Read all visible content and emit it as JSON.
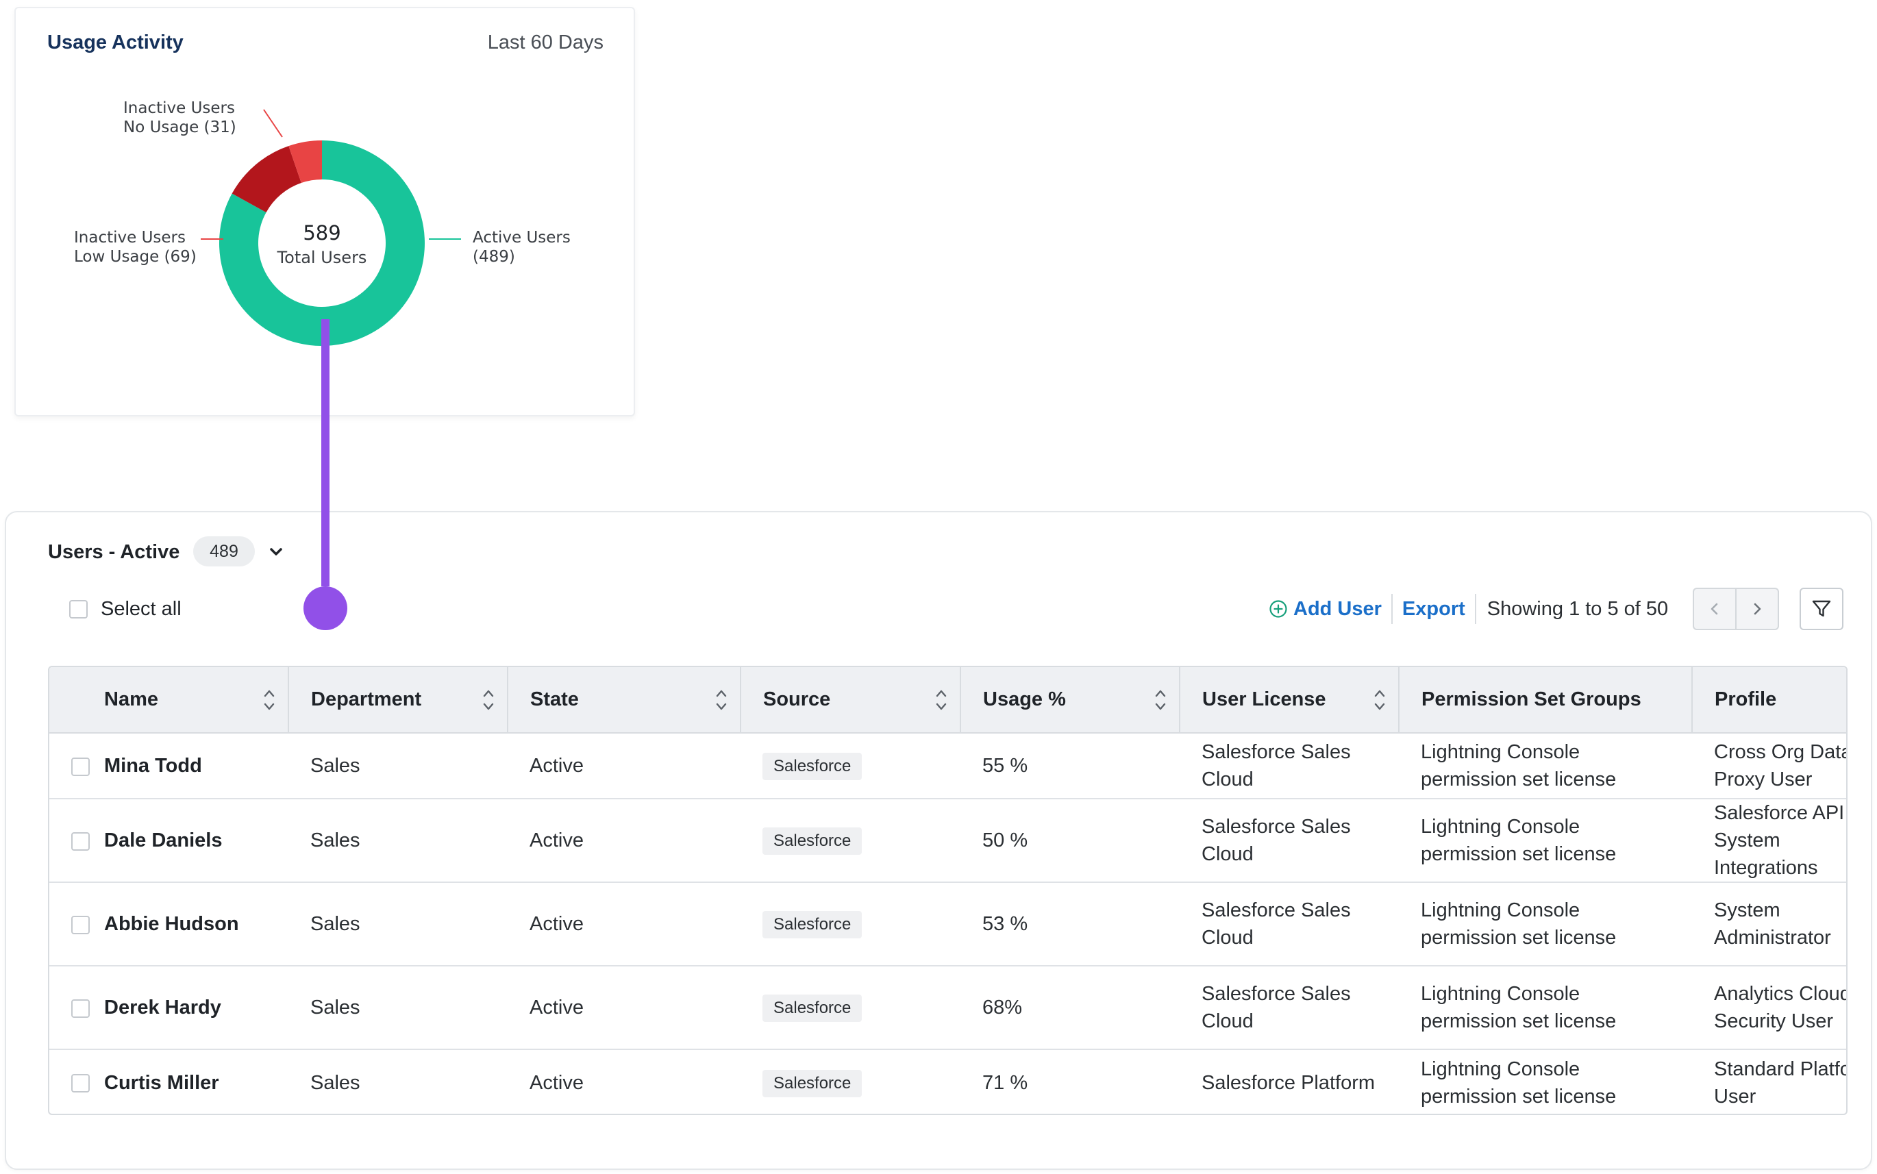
{
  "usage_card": {
    "title": "Usage Activity",
    "range": "Last 60 Days",
    "center_number": "589",
    "center_label": "Total Users",
    "labels": {
      "inactive_no_usage": [
        "Inactive Users",
        "No Usage (31)"
      ],
      "inactive_low_usage": [
        "Inactive Users",
        "Low Usage (69)"
      ],
      "active": [
        "Active Users",
        "(489)"
      ]
    },
    "colors": {
      "active": "#18c49a",
      "low_usage": "#b3161c",
      "no_usage": "#e84444",
      "connector": "#9150e8"
    }
  },
  "chart_data": {
    "type": "pie",
    "title": "Usage Activity",
    "subtitle": "Last 60 Days",
    "total": 589,
    "slices": [
      {
        "label": "Active Users",
        "value": 489
      },
      {
        "label": "Inactive Users Low Usage",
        "value": 69
      },
      {
        "label": "Inactive Users No Usage",
        "value": 31
      }
    ]
  },
  "users_panel": {
    "title": "Users - Active",
    "count": "489",
    "select_all_label": "Select all",
    "add_user_label": "Add User",
    "export_label": "Export",
    "showing_text": "Showing 1 to 5 of 50",
    "columns": [
      "Name",
      "Department",
      "State",
      "Source",
      "Usage %",
      "User License",
      "Permission Set Groups",
      "Profile"
    ],
    "rows": [
      {
        "name": "Mina Todd",
        "department": "Sales",
        "state": "Active",
        "source": "Salesforce",
        "usage": "55 %",
        "license": "Salesforce Sales Cloud",
        "psg": "Lightning Console permission set license",
        "profile": "Cross Org Data Proxy User",
        "profile_lines": [
          "Cross Org Data",
          "Proxy User"
        ]
      },
      {
        "name": "Dale Daniels",
        "department": "Sales",
        "state": "Active",
        "source": "Salesforce",
        "usage": "50 %",
        "license": "Salesforce Sales Cloud",
        "psg": "Lightning Console permission set license",
        "profile": "Salesforce API System Integrations",
        "profile_lines": [
          "Salesforce API",
          "System",
          "Integrations"
        ]
      },
      {
        "name": "Abbie Hudson",
        "department": "Sales",
        "state": "Active",
        "source": "Salesforce",
        "usage": "53 %",
        "license": "Salesforce Sales Cloud",
        "psg": "Lightning Console permission set license",
        "profile": "System Administrator",
        "profile_lines": [
          "System",
          "Administrator"
        ]
      },
      {
        "name": "Derek Hardy",
        "department": "Sales",
        "state": "Active",
        "source": "Salesforce",
        "usage": "68%",
        "license": "Salesforce Sales Cloud",
        "psg": "Lightning Console permission set license",
        "profile": "Analytics Cloud Security User",
        "profile_lines": [
          "Analytics Cloud",
          "Security User"
        ]
      },
      {
        "name": "Curtis Miller",
        "department": "Sales",
        "state": "Active",
        "source": "Salesforce",
        "usage": "71 %",
        "license": "Salesforce Platform",
        "psg": "Lightning Console permission set license",
        "profile": "Standard Platform User",
        "profile_lines": [
          "Standard Platform",
          "User"
        ]
      }
    ]
  }
}
